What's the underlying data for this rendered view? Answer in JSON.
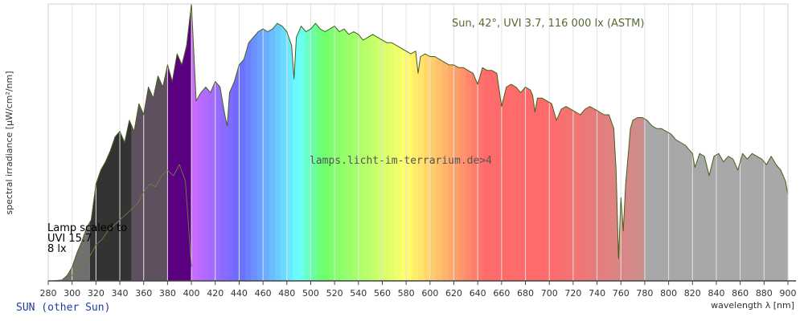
{
  "header": {
    "sun_label": "Sun, 42°, UVI 3.7, 116 000 lx (ASTM)"
  },
  "watermark": "lamps.licht-im-terrarium.de>4",
  "lamp_note": {
    "line1": "Lamp scaled to",
    "line2": "UVI 15.7",
    "line3": "8 lx"
  },
  "footer": "SUN (other Sun)",
  "chart_data": {
    "type": "area",
    "title": "Sun, 42°, UVI 3.7, 116 000 lx (ASTM)",
    "xlabel": "wavelength λ [nm]",
    "ylabel": "spectral irradiance [µW/cm²/nm]",
    "xlim": [
      280,
      900
    ],
    "ylim": [
      0,
      100
    ],
    "grid": true,
    "x_ticks": [
      280,
      300,
      320,
      340,
      360,
      380,
      400,
      420,
      440,
      460,
      480,
      500,
      520,
      540,
      560,
      580,
      600,
      620,
      640,
      660,
      680,
      700,
      720,
      740,
      760,
      780,
      800,
      820,
      840,
      860,
      880,
      900
    ],
    "band_colors": {
      "uvb": "#707070",
      "uva2": "#333333",
      "uva1": "#5f5060",
      "violet_uv": "#5a0080",
      "infrared": "#a8a8a8",
      "line_sun": "#445f1a",
      "line_lamp": "#6f7f3f",
      "grid_stripe": "#f2f2f2"
    },
    "series": [
      {
        "name": "Sun, 42°, UVI 3.7, 116 000 lx (ASTM)",
        "x": [
          292,
          296,
          300,
          304,
          308,
          312,
          316,
          320,
          324,
          328,
          332,
          336,
          340,
          344,
          348,
          352,
          356,
          360,
          364,
          368,
          372,
          376,
          380,
          384,
          388,
          392,
          396,
          400,
          404,
          408,
          412,
          416,
          420,
          424,
          428,
          430,
          432,
          436,
          440,
          444,
          448,
          452,
          456,
          460,
          464,
          468,
          472,
          476,
          480,
          484,
          486,
          488,
          492,
          496,
          500,
          504,
          508,
          512,
          516,
          520,
          524,
          528,
          532,
          536,
          540,
          544,
          548,
          552,
          556,
          560,
          564,
          568,
          572,
          576,
          580,
          584,
          588,
          590,
          592,
          596,
          600,
          604,
          608,
          612,
          616,
          620,
          624,
          628,
          632,
          636,
          640,
          644,
          648,
          652,
          656,
          660,
          664,
          668,
          672,
          676,
          680,
          684,
          686,
          688,
          690,
          694,
          698,
          702,
          706,
          710,
          714,
          718,
          722,
          726,
          730,
          734,
          738,
          742,
          746,
          750,
          754,
          756,
          758,
          760,
          762,
          764,
          766,
          768,
          770,
          774,
          778,
          782,
          786,
          790,
          794,
          798,
          802,
          806,
          810,
          814,
          818,
          820,
          822,
          826,
          830,
          834,
          838,
          842,
          846,
          850,
          854,
          858,
          862,
          866,
          870,
          874,
          878,
          882,
          886,
          890,
          894,
          898,
          900
        ],
        "values": [
          0.5,
          2,
          5,
          10,
          14,
          19,
          22,
          35,
          40,
          43,
          47,
          52,
          54,
          50,
          58,
          54,
          64,
          60,
          70,
          66,
          74,
          70,
          78,
          72,
          82,
          78,
          85,
          100,
          65,
          68,
          70,
          68,
          72,
          70,
          60,
          56,
          68,
          72,
          78,
          80,
          86,
          88,
          90,
          91,
          90,
          91,
          93,
          92,
          90,
          85,
          73,
          88,
          92,
          90,
          91,
          93,
          91,
          90,
          91,
          92,
          90,
          91,
          89,
          90,
          89,
          87,
          88,
          89,
          88,
          87,
          86,
          86,
          85,
          84,
          83,
          82,
          83,
          75,
          81,
          82,
          81,
          81,
          80,
          79,
          78,
          78,
          77,
          77,
          76,
          75,
          71,
          77,
          76,
          76,
          75,
          63,
          70,
          71,
          70,
          68,
          70,
          69,
          67,
          61,
          66,
          66,
          65,
          64,
          58,
          62,
          63,
          62,
          61,
          60,
          62,
          63,
          62,
          61,
          60,
          60,
          55,
          40,
          8,
          30,
          18,
          35,
          45,
          55,
          58,
          59,
          59,
          58,
          56,
          55,
          55,
          54,
          53,
          51,
          50,
          49,
          47,
          46,
          41,
          46,
          45,
          38,
          45,
          46,
          43,
          45,
          44,
          40,
          46,
          44,
          46,
          45,
          44,
          42,
          45,
          42,
          40,
          36,
          31
        ]
      },
      {
        "name": "Lamp scaled to UVI 15.7",
        "x": [
          296,
          300,
          305,
          310,
          315,
          320,
          325,
          330,
          335,
          340,
          345,
          350,
          355,
          360,
          365,
          370,
          375,
          380,
          385,
          390,
          395,
          400
        ],
        "values": [
          0,
          2,
          5,
          7,
          9,
          13,
          15,
          18,
          20,
          22,
          24,
          26,
          28,
          32,
          35,
          34,
          38,
          40,
          38,
          42,
          36,
          5
        ]
      }
    ]
  }
}
